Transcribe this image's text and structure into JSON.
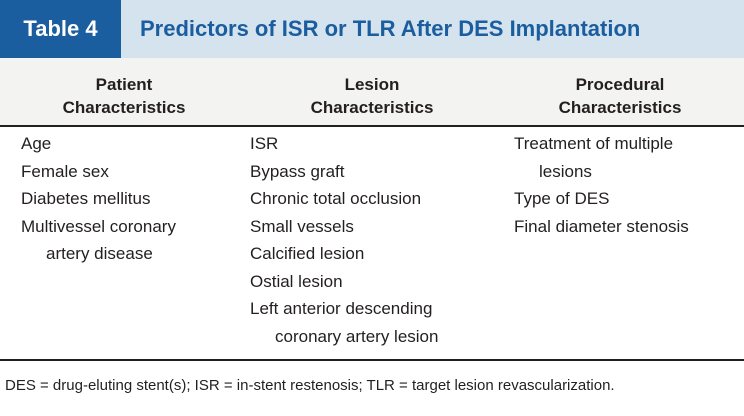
{
  "title": {
    "label": "Table 4",
    "text": "Predictors of ISR or TLR After DES Implantation"
  },
  "columns": [
    {
      "heading": [
        "Patient",
        "Characteristics"
      ],
      "items": [
        [
          "Age"
        ],
        [
          "Female sex"
        ],
        [
          "Diabetes mellitus"
        ],
        [
          "Multivessel coronary",
          "artery disease"
        ]
      ]
    },
    {
      "heading": [
        "Lesion",
        "Characteristics"
      ],
      "items": [
        [
          "ISR"
        ],
        [
          "Bypass graft"
        ],
        [
          "Chronic total occlusion"
        ],
        [
          "Small vessels"
        ],
        [
          "Calcified lesion"
        ],
        [
          "Ostial lesion"
        ],
        [
          "Left anterior descending",
          "coronary artery lesion"
        ]
      ]
    },
    {
      "heading": [
        "Procedural",
        "Characteristics"
      ],
      "items": [
        [
          "Treatment of multiple",
          "lesions"
        ],
        [
          "Type of DES"
        ],
        [
          "Final diameter stenosis"
        ]
      ]
    }
  ],
  "footnote": "DES = drug-eluting stent(s); ISR = in-stent restenosis; TLR = target lesion revascularization.",
  "colors": {
    "accent": "#1b5ea0",
    "title_band": "#d5e3ee",
    "header_band": "#f3f3f1"
  }
}
